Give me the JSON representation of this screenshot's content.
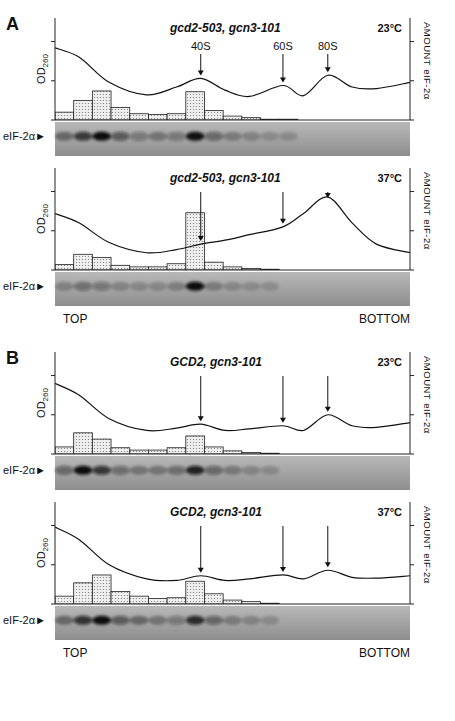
{
  "chart_data": [
    {
      "type": "bar",
      "panel": "A",
      "title": "gcd2-503, gcn3-101",
      "subtitle": "23°C",
      "ylabel": "OD260",
      "y2label": "AMOUNT eIF-2α",
      "blot_label": "eIF-2α►",
      "xlim": [
        0.5,
        19.5
      ],
      "ylim": [
        0,
        130
      ],
      "yticks": [
        0,
        50,
        100
      ],
      "y2lim": [
        0,
        130
      ],
      "y2ticks": [
        0,
        50,
        100
      ],
      "tick_labels": false,
      "series": [
        {
          "type": "line",
          "x": [
            0.5,
            1.8,
            3.4,
            5.4,
            7,
            8.3,
            9.6,
            10.9,
            12.7,
            13.8,
            15.1,
            16.4,
            17.7,
            19.5
          ],
          "values": [
            92,
            80,
            48,
            32,
            42,
            53,
            38,
            30,
            44,
            31,
            57,
            42,
            40,
            48
          ]
        },
        {
          "type": "bar",
          "axis": "y2",
          "x": [
            1,
            2,
            3,
            4,
            5,
            6,
            7,
            8,
            9,
            10,
            11,
            12,
            13,
            14,
            15,
            16,
            17,
            18,
            19
          ],
          "values": [
            10,
            25,
            37,
            16,
            8,
            7,
            8,
            36,
            12,
            5,
            3,
            1,
            1,
            0,
            0,
            0,
            0,
            0,
            0
          ]
        }
      ],
      "annotations": [
        {
          "text": "40S",
          "x": 8.3
        },
        {
          "text": "60S",
          "x": 12.7
        },
        {
          "text": "80S",
          "x": 15.1
        }
      ]
    },
    {
      "type": "bar",
      "title": "gcd2-503, gcn3-101",
      "subtitle": "37°C",
      "ylabel": "OD260",
      "y2label": "AMOUNT eIF-2α",
      "blot_label": "eIF-2α►",
      "x_start_label": "TOP",
      "x_end_label": "BOTTOM",
      "xlim": [
        0.5,
        19.5
      ],
      "ylim": [
        0,
        130
      ],
      "yticks": [
        0,
        50,
        100
      ],
      "y2lim": [
        0,
        130
      ],
      "y2ticks": [
        0,
        50,
        100
      ],
      "tick_labels": false,
      "series": [
        {
          "type": "line",
          "x": [
            0.5,
            1.8,
            3.4,
            5.4,
            7,
            8.3,
            9.6,
            10.9,
            12.7,
            13.8,
            15.1,
            16.4,
            17.7,
            19.5
          ],
          "values": [
            72,
            60,
            35,
            22,
            26,
            33,
            38,
            45,
            55,
            72,
            93,
            60,
            33,
            22
          ]
        },
        {
          "type": "bar",
          "axis": "y2",
          "x": [
            1,
            2,
            3,
            4,
            5,
            6,
            7,
            8,
            9,
            10,
            11,
            12,
            13,
            14,
            15,
            16,
            17,
            18,
            19
          ],
          "values": [
            7,
            20,
            16,
            6,
            4,
            4,
            8,
            73,
            10,
            4,
            2,
            1,
            0,
            0,
            0,
            0,
            0,
            0,
            0
          ]
        }
      ],
      "annotations": [
        {
          "x": 8.3
        },
        {
          "x": 12.7
        },
        {
          "x": 15.1
        }
      ]
    },
    {
      "type": "bar",
      "panel": "B",
      "title": "GCD2, gcn3-101",
      "subtitle": "23°C",
      "ylabel": "OD260",
      "y2label": "AMOUNT eIF-2α",
      "blot_label": "eIF-2α►",
      "xlim": [
        0.5,
        19.5
      ],
      "ylim": [
        0,
        130
      ],
      "yticks": [
        0,
        50,
        100
      ],
      "y2lim": [
        0,
        130
      ],
      "y2ticks": [
        0,
        50,
        100
      ],
      "tick_labels": false,
      "series": [
        {
          "type": "line",
          "x": [
            0.5,
            1.8,
            3.4,
            5.4,
            7,
            8.3,
            9.6,
            10.9,
            12.7,
            13.8,
            15.1,
            16.4,
            17.7,
            19.5
          ],
          "values": [
            90,
            75,
            45,
            30,
            33,
            38,
            30,
            32,
            36,
            30,
            50,
            36,
            34,
            40
          ]
        },
        {
          "type": "bar",
          "axis": "y2",
          "x": [
            1,
            2,
            3,
            4,
            5,
            6,
            7,
            8,
            9,
            10,
            11,
            12,
            13,
            14,
            15,
            16,
            17,
            18,
            19
          ],
          "values": [
            9,
            27,
            19,
            8,
            5,
            5,
            8,
            23,
            9,
            4,
            2,
            1,
            0,
            0,
            0,
            0,
            0,
            0,
            0
          ]
        }
      ],
      "annotations": [
        {
          "x": 8.3
        },
        {
          "x": 12.7
        },
        {
          "x": 15.1
        }
      ]
    },
    {
      "type": "bar",
      "title": "GCD2, gcn3-101",
      "subtitle": "37°C",
      "ylabel": "OD260",
      "y2label": "AMOUNT eIF-2α",
      "blot_label": "eIF-2α►",
      "x_start_label": "TOP",
      "x_end_label": "BOTTOM",
      "xlim": [
        0.5,
        19.5
      ],
      "ylim": [
        0,
        130
      ],
      "yticks": [
        0,
        50,
        100
      ],
      "y2lim": [
        0,
        130
      ],
      "y2ticks": [
        0,
        50,
        100
      ],
      "tick_labels": false,
      "series": [
        {
          "type": "line",
          "x": [
            0.5,
            1.8,
            3.4,
            5.4,
            7,
            8.3,
            9.6,
            10.9,
            12.7,
            13.8,
            15.1,
            16.4,
            17.7,
            19.5
          ],
          "values": [
            98,
            82,
            50,
            32,
            30,
            36,
            30,
            32,
            37,
            32,
            43,
            34,
            33,
            36
          ]
        },
        {
          "type": "bar",
          "axis": "y2",
          "x": [
            1,
            2,
            3,
            4,
            5,
            6,
            7,
            8,
            9,
            10,
            11,
            12,
            13,
            14,
            15,
            16,
            17,
            18,
            19
          ],
          "values": [
            10,
            27,
            37,
            16,
            10,
            7,
            8,
            29,
            13,
            5,
            3,
            1,
            0,
            0,
            0,
            0,
            0,
            0,
            0
          ]
        }
      ],
      "annotations": [
        {
          "x": 8.3
        },
        {
          "x": 12.7
        },
        {
          "x": 15.1
        }
      ]
    }
  ]
}
